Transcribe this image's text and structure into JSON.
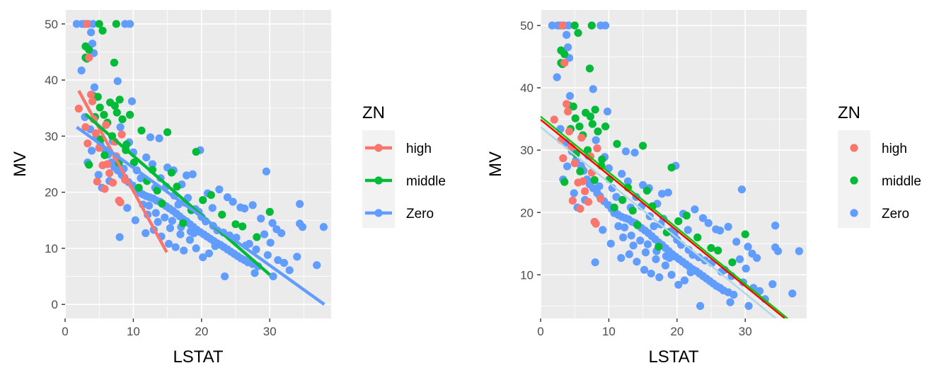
{
  "colors": {
    "high": "#F8766D",
    "middle": "#00BA38",
    "Zero": "#619CFF",
    "panel_bg": "#EBEBEB",
    "grid": "#FFFFFF",
    "fit_red": "#FF0000",
    "fit_green": "#00CC00",
    "fit_lightblue": "#ADD8E6"
  },
  "chart_data": [
    {
      "type": "scatter",
      "xlabel": "LSTAT",
      "ylabel": "MV",
      "xlim": [
        0,
        39
      ],
      "ylim": [
        -2.5,
        52.5
      ],
      "xticks": [
        0,
        10,
        20,
        30
      ],
      "yticks": [
        0,
        10,
        20,
        30,
        40,
        50
      ],
      "grid": true,
      "legend": {
        "title": "ZN",
        "position": "right",
        "entries": [
          "high",
          "middle",
          "Zero"
        ],
        "glyph": "line-and-point"
      },
      "series": [
        {
          "name": "high",
          "points": [
            [
              2.0,
              34.9
            ],
            [
              3.0,
              31.6
            ],
            [
              3.3,
              28.7
            ],
            [
              3.5,
              44.0
            ],
            [
              3.8,
              37.4
            ],
            [
              4.2,
              33.0
            ],
            [
              4.5,
              30.5
            ],
            [
              5.0,
              27.9
            ],
            [
              5.5,
              24.8
            ],
            [
              5.8,
              20.6
            ],
            [
              6.2,
              25.0
            ],
            [
              6.5,
              23.4
            ],
            [
              7.0,
              21.7
            ],
            [
              7.5,
              26.4
            ],
            [
              7.9,
              18.5
            ],
            [
              8.1,
              18.2
            ],
            [
              8.3,
              30.3
            ],
            [
              8.8,
              22.2
            ],
            [
              4.0,
              36.2
            ],
            [
              3.2,
              50.0
            ],
            [
              4.7,
              21.9
            ],
            [
              6.0,
              32.0
            ],
            [
              7.3,
              29.0
            ]
          ],
          "fit": {
            "x": [
              2.0,
              14.9
            ],
            "y": [
              38.1,
              9.3
            ]
          }
        },
        {
          "name": "middle",
          "points": [
            [
              3.0,
              44.0
            ],
            [
              3.2,
              43.8
            ],
            [
              3.5,
              45.4
            ],
            [
              3.0,
              46.0
            ],
            [
              5.0,
              50.0
            ],
            [
              5.5,
              48.8
            ],
            [
              7.5,
              50.0
            ],
            [
              7.2,
              43.1
            ],
            [
              4.1,
              37.2
            ],
            [
              4.8,
              37.0
            ],
            [
              5.1,
              35.1
            ],
            [
              5.7,
              33.8
            ],
            [
              6.2,
              32.4
            ],
            [
              6.6,
              36.0
            ],
            [
              7.3,
              35.4
            ],
            [
              7.6,
              34.2
            ],
            [
              8.0,
              36.5
            ],
            [
              8.4,
              33.0
            ],
            [
              9.0,
              28.5
            ],
            [
              9.5,
              33.8
            ],
            [
              10.1,
              25.3
            ],
            [
              11.2,
              31.0
            ],
            [
              12.0,
              22.0
            ],
            [
              13.5,
              20.3
            ],
            [
              15.0,
              30.7
            ],
            [
              15.6,
              23.5
            ],
            [
              19.2,
              27.2
            ],
            [
              21.4,
              19.5
            ],
            [
              23.0,
              16.0
            ],
            [
              25.0,
              14.3
            ],
            [
              30.0,
              16.5
            ],
            [
              3.5,
              24.9
            ],
            [
              5.8,
              26.6
            ],
            [
              7.9,
              25.2
            ],
            [
              8.9,
              27.5
            ],
            [
              10.8,
              20.8
            ],
            [
              12.8,
              24.0
            ],
            [
              14.2,
              18.0
            ],
            [
              16.4,
              21.0
            ],
            [
              17.3,
              14.5
            ],
            [
              18.5,
              16.8
            ],
            [
              20.2,
              18.6
            ],
            [
              26.0,
              13.9
            ],
            [
              28.1,
              12.0
            ],
            [
              6.9,
              30.0
            ],
            [
              5.2,
              29.4
            ],
            [
              4.4,
              33.4
            ]
          ],
          "fit": {
            "x": [
              3.0,
              30.0
            ],
            "y": [
              33.9,
              5.3
            ]
          }
        },
        {
          "name": "Zero",
          "points": [
            [
              1.7,
              50.0
            ],
            [
              2.5,
              50.0
            ],
            [
              2.9,
              50.0
            ],
            [
              3.4,
              50.0
            ],
            [
              4.1,
              50.0
            ],
            [
              8.8,
              50.0
            ],
            [
              9.5,
              50.0
            ],
            [
              3.8,
              48.5
            ],
            [
              4.0,
              46.5
            ],
            [
              4.2,
              44.8
            ],
            [
              2.4,
              41.7
            ],
            [
              7.7,
              39.8
            ],
            [
              4.3,
              38.7
            ],
            [
              9.8,
              36.2
            ],
            [
              2.9,
              33.4
            ],
            [
              3.7,
              31.2
            ],
            [
              4.6,
              29.8
            ],
            [
              5.2,
              28.4
            ],
            [
              5.9,
              27.5
            ],
            [
              6.3,
              26.7
            ],
            [
              6.8,
              25.3
            ],
            [
              7.2,
              24.5
            ],
            [
              7.7,
              23.9
            ],
            [
              8.3,
              23.1
            ],
            [
              8.7,
              22.6
            ],
            [
              9.3,
              21.8
            ],
            [
              9.9,
              21.2
            ],
            [
              10.4,
              20.6
            ],
            [
              10.9,
              20.1
            ],
            [
              11.4,
              19.6
            ],
            [
              11.9,
              19.3
            ],
            [
              12.4,
              19.1
            ],
            [
              12.9,
              18.9
            ],
            [
              13.4,
              18.5
            ],
            [
              13.9,
              18.3
            ],
            [
              14.3,
              17.9
            ],
            [
              14.8,
              17.5
            ],
            [
              15.3,
              17.1
            ],
            [
              15.8,
              16.7
            ],
            [
              16.3,
              16.2
            ],
            [
              16.8,
              15.7
            ],
            [
              17.3,
              15.2
            ],
            [
              17.8,
              14.8
            ],
            [
              18.3,
              14.3
            ],
            [
              18.8,
              13.8
            ],
            [
              19.3,
              13.3
            ],
            [
              19.8,
              12.9
            ],
            [
              20.3,
              12.5
            ],
            [
              20.8,
              12.1
            ],
            [
              21.3,
              11.7
            ],
            [
              21.8,
              11.3
            ],
            [
              22.3,
              10.9
            ],
            [
              22.8,
              10.6
            ],
            [
              23.3,
              10.2
            ],
            [
              23.8,
              9.8
            ],
            [
              24.3,
              9.4
            ],
            [
              24.8,
              9.0
            ],
            [
              25.3,
              8.6
            ],
            [
              25.8,
              8.2
            ],
            [
              26.3,
              7.9
            ],
            [
              26.8,
              7.5
            ],
            [
              27.5,
              7.2
            ],
            [
              28.3,
              6.8
            ],
            [
              29.5,
              23.7
            ],
            [
              30.4,
              14.5
            ],
            [
              31.0,
              13.4
            ],
            [
              31.7,
              12.7
            ],
            [
              34.4,
              17.9
            ],
            [
              34.4,
              14.4
            ],
            [
              34.8,
              13.8
            ],
            [
              37.9,
              13.8
            ],
            [
              36.9,
              7.0
            ],
            [
              34.0,
              8.5
            ],
            [
              32.1,
              7.4
            ],
            [
              30.5,
              5.0
            ],
            [
              23.4,
              5.0
            ],
            [
              27.8,
              5.6
            ],
            [
              10.3,
              15.0
            ],
            [
              11.8,
              12.7
            ],
            [
              13.2,
              20.8
            ],
            [
              14.0,
              22.5
            ],
            [
              15.0,
              24.4
            ],
            [
              15.9,
              23.9
            ],
            [
              17.1,
              21.4
            ],
            [
              17.8,
              23.0
            ],
            [
              18.7,
              23.2
            ],
            [
              19.8,
              27.5
            ],
            [
              20.9,
              19.8
            ],
            [
              21.6,
              17.2
            ],
            [
              22.6,
              20.5
            ],
            [
              23.8,
              19.1
            ],
            [
              24.6,
              18.3
            ],
            [
              25.7,
              17.3
            ],
            [
              26.3,
              17.1
            ],
            [
              27.5,
              17.7
            ],
            [
              28.7,
              15.3
            ],
            [
              29.2,
              12.5
            ],
            [
              30.1,
              11.0
            ],
            [
              8.0,
              12.0
            ],
            [
              9.1,
              17.2
            ],
            [
              10.8,
              19.9
            ],
            [
              12.1,
              16.0
            ],
            [
              13.0,
              13.3
            ],
            [
              14.1,
              12.1
            ],
            [
              15.2,
              10.8
            ],
            [
              16.2,
              10.2
            ],
            [
              17.4,
              9.6
            ],
            [
              18.3,
              11.5
            ],
            [
              19.2,
              10.0
            ],
            [
              20.2,
              8.4
            ],
            [
              21.1,
              9.1
            ],
            [
              22.0,
              10.4
            ],
            [
              12.5,
              29.8
            ],
            [
              13.8,
              29.6
            ],
            [
              11.9,
              26.2
            ],
            [
              12.8,
              25.0
            ],
            [
              10.0,
              27.1
            ],
            [
              9.4,
              28.9
            ],
            [
              8.6,
              24.2
            ],
            [
              6.5,
              22.0
            ],
            [
              5.4,
              20.8
            ],
            [
              4.9,
              23.1
            ],
            [
              3.3,
              25.3
            ],
            [
              3.9,
              27.4
            ],
            [
              8.1,
              31.6
            ],
            [
              7.0,
              29.1
            ],
            [
              6.1,
              27.0
            ],
            [
              16.6,
              17.8
            ],
            [
              18.0,
              19.0
            ],
            [
              19.6,
              16.5
            ],
            [
              20.6,
              14.8
            ],
            [
              22.3,
              13.2
            ],
            [
              24.1,
              12.3
            ],
            [
              26.5,
              10.5
            ],
            [
              14.6,
              15.5
            ],
            [
              13.6,
              14.7
            ],
            [
              15.4,
              13.6
            ],
            [
              16.9,
              12.5
            ],
            [
              18.4,
              13.0
            ],
            [
              12.3,
              17.6
            ],
            [
              11.1,
              22.5
            ],
            [
              10.5,
              23.9
            ],
            [
              14.8,
              21.0
            ],
            [
              16.0,
              19.4
            ],
            [
              17.6,
              18.1
            ],
            [
              19.1,
              17.0
            ],
            [
              20.0,
              15.6
            ],
            [
              21.7,
              14.0
            ],
            [
              23.2,
              12.8
            ],
            [
              25.1,
              11.9
            ],
            [
              27.0,
              10.8
            ],
            [
              28.0,
              9.8
            ],
            [
              29.7,
              8.8
            ],
            [
              31.2,
              7.9
            ],
            [
              32.9,
              6.1
            ],
            [
              11.4,
              17.8
            ],
            [
              13.3,
              16.3
            ],
            [
              15.7,
              14.9
            ],
            [
              17.0,
              13.8
            ],
            [
              18.9,
              12.7
            ]
          ],
          "fit": {
            "x": [
              1.7,
              38.0
            ],
            "y": [
              31.6,
              0.0
            ]
          }
        }
      ]
    },
    {
      "type": "scatter",
      "xlabel": "LSTAT",
      "ylabel": "MV",
      "xlim": [
        0,
        39
      ],
      "ylim": [
        3.0,
        52.5
      ],
      "xticks": [
        0,
        10,
        20,
        30
      ],
      "yticks": [
        10,
        20,
        30,
        40,
        50
      ],
      "grid": true,
      "legend": {
        "title": "ZN",
        "position": "right",
        "entries": [
          "high",
          "middle",
          "Zero"
        ],
        "glyph": "point"
      },
      "points_same_as_left_panel": true,
      "fit_lines": [
        {
          "color": "fit_green",
          "x": [
            0,
            36.2
          ],
          "y": [
            35.4,
            3.0
          ]
        },
        {
          "color": "fit_red",
          "x": [
            0,
            35.8
          ],
          "y": [
            34.9,
            3.0
          ]
        },
        {
          "color": "fit_lightblue",
          "x": [
            0,
            34.5
          ],
          "y": [
            33.7,
            3.0
          ]
        }
      ]
    }
  ]
}
